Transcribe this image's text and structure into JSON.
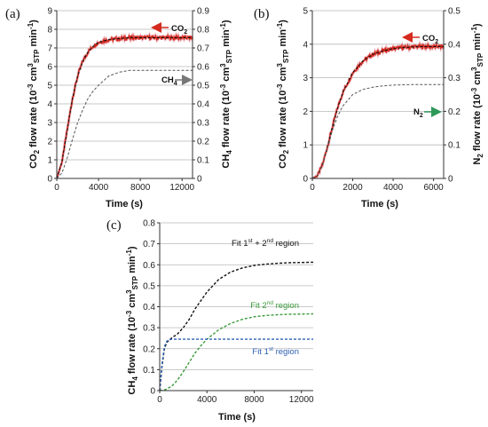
{
  "chart_data": [
    {
      "panel": "(a)",
      "type": "line",
      "xlabel": "Time (s)",
      "ylabel": "CO2 flow rate (10-3 cm3STP min-1)",
      "ylabel2": "CH4 flow rate (10-3 cm3STP min-1)",
      "xlim": [
        0,
        13000
      ],
      "ylim": [
        0,
        9
      ],
      "ylim2": [
        0,
        0.9
      ],
      "xticks": [
        "0",
        "4000",
        "8000",
        "12000"
      ],
      "yticks": [
        "0",
        "1",
        "2",
        "3",
        "4",
        "5",
        "6",
        "7",
        "8",
        "9"
      ],
      "yticks2": [
        "0",
        "0.1",
        "0.2",
        "0.3",
        "0.4",
        "0.5",
        "0.6",
        "0.7",
        "0.8",
        "0.9"
      ],
      "grid": true,
      "annotations": [
        "CO2",
        "CH4"
      ],
      "series": [
        {
          "name": "CO2",
          "axis": "left",
          "color": "#d42a1f",
          "x": [
            0,
            500,
            1000,
            1500,
            2000,
            2500,
            3000,
            3500,
            4000,
            5000,
            6000,
            7000,
            8000,
            9000,
            10000,
            11000,
            12000,
            13000
          ],
          "y": [
            0,
            0.9,
            2.6,
            4.3,
            5.5,
            6.3,
            6.8,
            7.1,
            7.3,
            7.45,
            7.5,
            7.55,
            7.55,
            7.55,
            7.55,
            7.55,
            7.55,
            7.55
          ]
        },
        {
          "name": "CH4",
          "axis": "right",
          "color": "#555555",
          "x": [
            0,
            500,
            1000,
            1500,
            2000,
            2500,
            3000,
            3500,
            4000,
            5000,
            6000,
            7000,
            8000,
            9000,
            10000,
            11000,
            12000,
            13000
          ],
          "y": [
            0,
            0.03,
            0.11,
            0.21,
            0.3,
            0.37,
            0.43,
            0.47,
            0.5,
            0.55,
            0.57,
            0.58,
            0.58,
            0.58,
            0.58,
            0.58,
            0.58,
            0.58
          ]
        }
      ]
    },
    {
      "panel": "(b)",
      "type": "line",
      "xlabel": "Time (s)",
      "ylabel": "CO2 flow rate (10-3 cm3STP min-1)",
      "ylabel2": "N2 flow rate (10-3 cm3STP min-1)",
      "xlim": [
        0,
        6500
      ],
      "ylim": [
        0,
        5
      ],
      "ylim2": [
        0,
        0.5
      ],
      "xticks": [
        "0",
        "2000",
        "4000",
        "6000"
      ],
      "yticks": [
        "0",
        "1",
        "2",
        "3",
        "4",
        "5"
      ],
      "yticks2": [
        "0",
        "0.1",
        "0.2",
        "0.3",
        "0.4",
        "0.5"
      ],
      "grid": true,
      "annotations": [
        "CO2",
        "N2"
      ],
      "series": [
        {
          "name": "CO2",
          "axis": "left",
          "color": "#d42a1f",
          "x": [
            0,
            250,
            500,
            750,
            1000,
            1250,
            1500,
            2000,
            2500,
            3000,
            3500,
            4000,
            4500,
            5000,
            5500,
            6000,
            6500
          ],
          "y": [
            0,
            0.08,
            0.4,
            0.95,
            1.55,
            2.1,
            2.55,
            3.15,
            3.5,
            3.7,
            3.8,
            3.87,
            3.9,
            3.92,
            3.93,
            3.93,
            3.93
          ]
        },
        {
          "name": "N2",
          "axis": "right",
          "color": "#555555",
          "x": [
            0,
            250,
            500,
            750,
            1000,
            1250,
            1500,
            2000,
            2500,
            3000,
            3500,
            4000,
            4500,
            5000,
            5500,
            6000,
            6500
          ],
          "y": [
            0,
            0.008,
            0.04,
            0.09,
            0.145,
            0.185,
            0.215,
            0.25,
            0.265,
            0.272,
            0.276,
            0.278,
            0.279,
            0.28,
            0.28,
            0.28,
            0.28
          ]
        }
      ]
    },
    {
      "panel": "(c)",
      "type": "line",
      "xlabel": "Time (s)",
      "ylabel": "CH4 flow rate (10-3 cm3STP min-1)",
      "xlim": [
        0,
        13000
      ],
      "ylim": [
        0,
        0.8
      ],
      "xticks": [
        "0",
        "4000",
        "8000",
        "12000"
      ],
      "yticks": [
        "0",
        "0.1",
        "0.2",
        "0.3",
        "0.4",
        "0.5",
        "0.6",
        "0.7",
        "0.8"
      ],
      "grid": true,
      "annotations": [
        "Fit 1st + 2nd region",
        "Fit 2nd region",
        "Fit 1st region"
      ],
      "series": [
        {
          "name": "Fit 1st + 2nd region",
          "color": "#111111",
          "x": [
            0,
            200,
            400,
            600,
            800,
            1000,
            1500,
            2000,
            2500,
            3000,
            3500,
            4000,
            5000,
            6000,
            7000,
            8000,
            9000,
            10000,
            11000,
            12000,
            13000
          ],
          "y": [
            0,
            0.12,
            0.2,
            0.23,
            0.24,
            0.25,
            0.27,
            0.3,
            0.34,
            0.39,
            0.43,
            0.47,
            0.53,
            0.565,
            0.585,
            0.597,
            0.603,
            0.607,
            0.61,
            0.611,
            0.612
          ]
        },
        {
          "name": "Fit 2nd region",
          "color": "#3a9a3a",
          "x": [
            0,
            500,
            1000,
            1500,
            2000,
            2500,
            3000,
            3500,
            4000,
            5000,
            6000,
            7000,
            8000,
            9000,
            10000,
            11000,
            12000,
            13000
          ],
          "y": [
            0,
            0.005,
            0.02,
            0.05,
            0.09,
            0.135,
            0.18,
            0.215,
            0.245,
            0.29,
            0.32,
            0.34,
            0.352,
            0.358,
            0.362,
            0.364,
            0.365,
            0.366
          ]
        },
        {
          "name": "Fit 1st region",
          "color": "#2b5fb3",
          "x": [
            0,
            200,
            400,
            600,
            800,
            1000,
            2000,
            4000,
            6000,
            8000,
            10000,
            12000,
            13000
          ],
          "y": [
            0,
            0.13,
            0.21,
            0.235,
            0.242,
            0.245,
            0.245,
            0.245,
            0.245,
            0.245,
            0.245,
            0.245,
            0.245
          ]
        }
      ]
    }
  ]
}
